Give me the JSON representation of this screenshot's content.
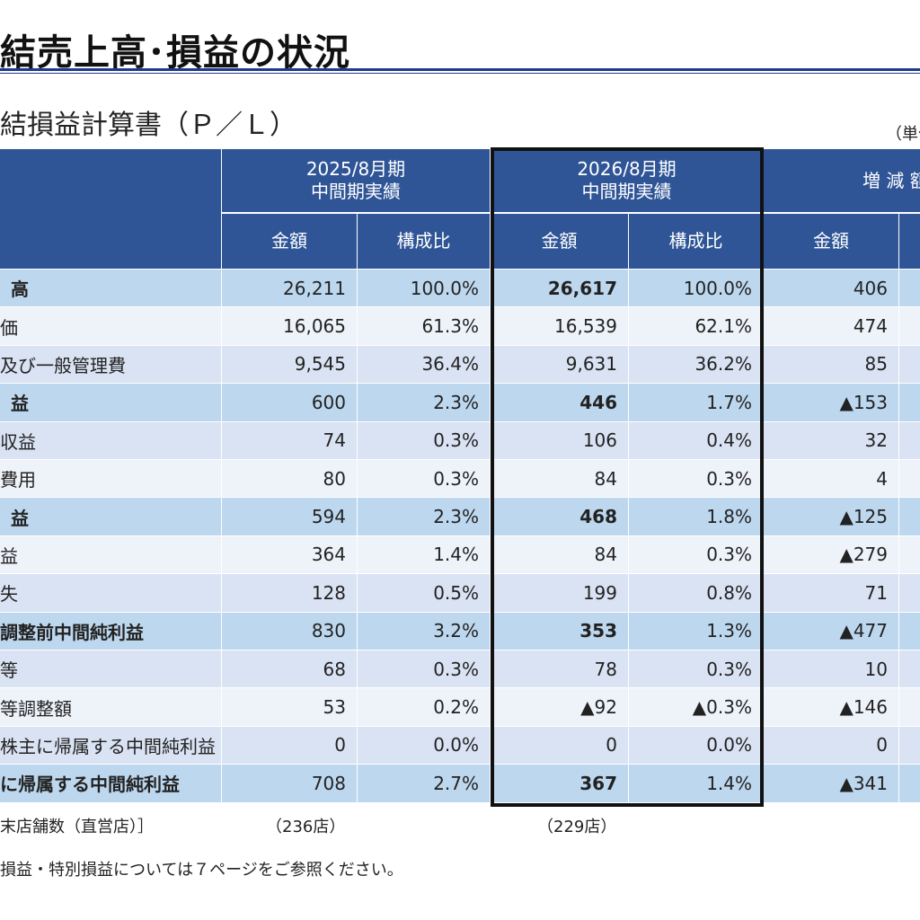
{
  "header": {
    "page_title": "結売上高･損益の状況",
    "section_title": "結損益計算書（Ｐ／Ｌ）",
    "unit_note": "（単位"
  },
  "table": {
    "groups": [
      {
        "line1": "2025/8月期",
        "line2": "中間期実績"
      },
      {
        "line1": "2026/8月期",
        "line2": "中間期実績"
      },
      {
        "line1": "増 減 額",
        "line2": ""
      }
    ],
    "subheaders": [
      "金額",
      "構成比",
      "金額",
      "構成比",
      "金額"
    ],
    "rows": [
      {
        "label": "高",
        "prev_amount": "26,211",
        "prev_ratio": "100.0%",
        "cur_amount": "26,617",
        "cur_ratio": "100.0%",
        "diff": "406",
        "highlight": true
      },
      {
        "label": "価",
        "prev_amount": "16,065",
        "prev_ratio": "61.3%",
        "cur_amount": "16,539",
        "cur_ratio": "62.1%",
        "diff": "474",
        "highlight": false
      },
      {
        "label": "及び一般管理費",
        "prev_amount": "9,545",
        "prev_ratio": "36.4%",
        "cur_amount": "9,631",
        "cur_ratio": "36.2%",
        "diff": "85",
        "highlight": false
      },
      {
        "label": "益",
        "prev_amount": "600",
        "prev_ratio": "2.3%",
        "cur_amount": "446",
        "cur_ratio": "1.7%",
        "diff": "▲153",
        "highlight": true
      },
      {
        "label": "収益",
        "prev_amount": "74",
        "prev_ratio": "0.3%",
        "cur_amount": "106",
        "cur_ratio": "0.4%",
        "diff": "32",
        "highlight": false
      },
      {
        "label": "費用",
        "prev_amount": "80",
        "prev_ratio": "0.3%",
        "cur_amount": "84",
        "cur_ratio": "0.3%",
        "diff": "4",
        "highlight": false
      },
      {
        "label": "益",
        "prev_amount": "594",
        "prev_ratio": "2.3%",
        "cur_amount": "468",
        "cur_ratio": "1.8%",
        "diff": "▲125",
        "highlight": true
      },
      {
        "label": "益",
        "prev_amount": "364",
        "prev_ratio": "1.4%",
        "cur_amount": "84",
        "cur_ratio": "0.3%",
        "diff": "▲279",
        "highlight": false
      },
      {
        "label": "失",
        "prev_amount": "128",
        "prev_ratio": "0.5%",
        "cur_amount": "199",
        "cur_ratio": "0.8%",
        "diff": "71",
        "highlight": false
      },
      {
        "label": "調整前中間純利益",
        "prev_amount": "830",
        "prev_ratio": "3.2%",
        "cur_amount": "353",
        "cur_ratio": "1.3%",
        "diff": "▲477",
        "highlight": true
      },
      {
        "label": "等",
        "prev_amount": "68",
        "prev_ratio": "0.3%",
        "cur_amount": "78",
        "cur_ratio": "0.3%",
        "diff": "10",
        "highlight": false
      },
      {
        "label": "等調整額",
        "prev_amount": "53",
        "prev_ratio": "0.2%",
        "cur_amount": "▲92",
        "cur_ratio": "▲0.3%",
        "diff": "▲146",
        "highlight": false
      },
      {
        "label": "株主に帰属する中間純利益",
        "prev_amount": "0",
        "prev_ratio": "0.0%",
        "cur_amount": "0",
        "cur_ratio": "0.0%",
        "diff": "0",
        "highlight": false
      },
      {
        "label": "に帰属する中間純利益",
        "prev_amount": "708",
        "prev_ratio": "2.7%",
        "cur_amount": "367",
        "cur_ratio": "1.4%",
        "diff": "▲341",
        "highlight": true
      }
    ]
  },
  "notes": {
    "store_label": "末店舗数（直営店）］",
    "store_prev": "（236店）",
    "store_cur": "（229店）",
    "footnote": "損益・特別損益については７ページをご参照ください。"
  },
  "colors": {
    "header_blue": "#2f5597",
    "highlight_row": "#bdd7ee",
    "row_a": "#dae3f3",
    "row_b": "#eef2f9"
  }
}
